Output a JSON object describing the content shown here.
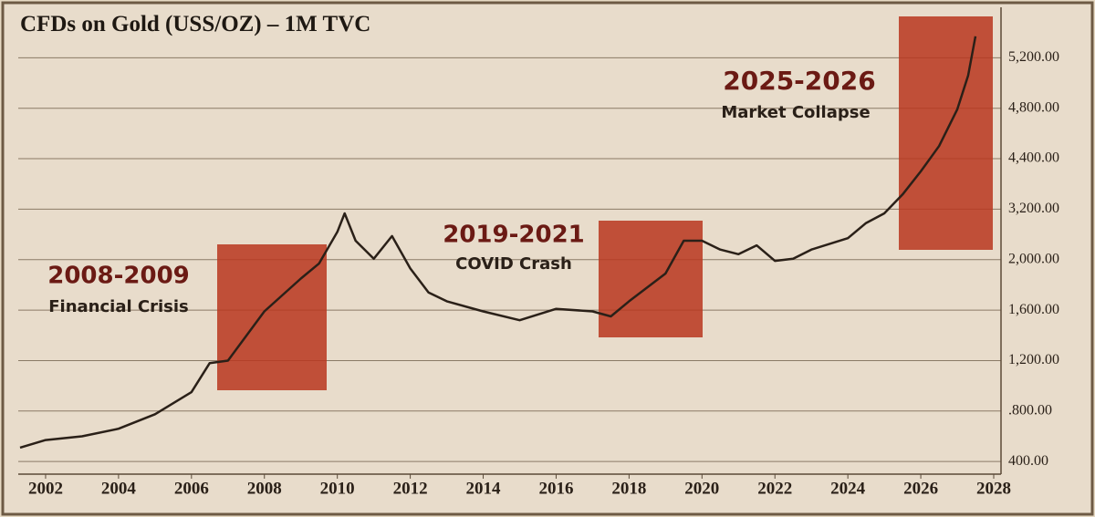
{
  "chart_data": {
    "type": "line",
    "title": "CFDs on Gold (USS/OZ) – 1M TVC",
    "x": [
      2001.3,
      2002,
      2003,
      2004,
      2005,
      2006,
      2006.5,
      2007,
      2008,
      2009,
      2009.5,
      2010,
      2010.2,
      2010.5,
      2011,
      2011.5,
      2012,
      2012.5,
      2013,
      2014,
      2015,
      2016,
      2017,
      2017.5,
      2018,
      2019,
      2019.5,
      2020,
      2020.5,
      2021,
      2021.5,
      2022,
      2022.5,
      2023,
      2024,
      2024.5,
      2025,
      2025.5,
      2026,
      2026.5,
      2027,
      2027.3,
      2027.5
    ],
    "values": [
      510,
      570,
      600,
      660,
      775,
      950,
      1180,
      1200,
      1590,
      1850,
      1970,
      2660,
      3100,
      2450,
      2020,
      2560,
      1930,
      1740,
      1670,
      1590,
      1520,
      1610,
      1590,
      1550,
      1670,
      1890,
      2450,
      2450,
      2240,
      2130,
      2340,
      1990,
      2020,
      2240,
      2510,
      2870,
      3100,
      3550,
      4100,
      4500,
      4790,
      5060,
      5370
    ],
    "color": "#2a2018",
    "xlim": [
      2001.25,
      2028.2
    ],
    "xticks": [
      2002,
      2004,
      2006,
      2008,
      2010,
      2012,
      2014,
      2016,
      2018,
      2020,
      2022,
      2024,
      2026,
      2028
    ],
    "ylim": [
      300,
      5600
    ],
    "yticks": [
      {
        "value": 400,
        "label": "400.00"
      },
      {
        "value": 800,
        "label": ".800.00"
      },
      {
        "value": 1200,
        "label": "1,200.00"
      },
      {
        "value": 1600,
        "label": "1,600.00"
      },
      {
        "value": 2000,
        "label": "2,000.00"
      },
      {
        "value": 3200,
        "label": "3,200.00"
      },
      {
        "value": 4400,
        "label": "4,400.00"
      },
      {
        "value": 4800,
        "label": "4,800.00"
      },
      {
        "value": 5200,
        "label": "5,200.00"
      }
    ],
    "grid": true,
    "annotations": [
      {
        "title": "2008-2009",
        "text": "Financial Crisis"
      },
      {
        "title": "2019-2021",
        "text": "COVID Crash"
      },
      {
        "title": "2025-2026",
        "text": "Market Collapse"
      }
    ]
  }
}
